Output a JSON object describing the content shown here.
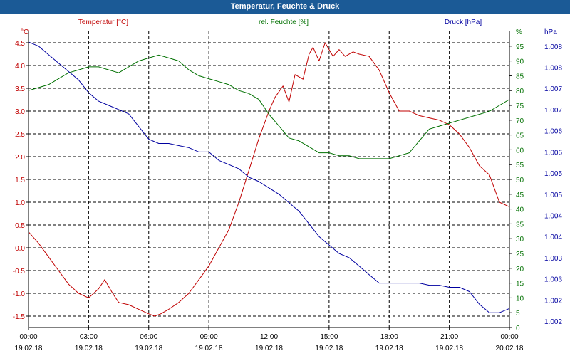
{
  "window": {
    "title": "Temperatur, Feuchte & Druck"
  },
  "chart_data": {
    "type": "line",
    "title": "Temperatur, Feuchte & Druck",
    "x_ticks": [
      {
        "time": "00:00",
        "date": "19.02.18"
      },
      {
        "time": "03:00",
        "date": "19.02.18"
      },
      {
        "time": "06:00",
        "date": "19.02.18"
      },
      {
        "time": "09:00",
        "date": "19.02.18"
      },
      {
        "time": "12:00",
        "date": "19.02.18"
      },
      {
        "time": "15:00",
        "date": "19.02.18"
      },
      {
        "time": "18:00",
        "date": "19.02.18"
      },
      {
        "time": "21:00",
        "date": "19.02.18"
      },
      {
        "time": "00:00",
        "date": "20.02.18"
      }
    ],
    "x_range_hours": [
      0,
      24
    ],
    "colors": {
      "temperature": "#c00000",
      "humidity": "#007000",
      "pressure": "#0000a0",
      "grid": "#000000",
      "axis_text": "#000000"
    },
    "axes": {
      "temperature": {
        "label": "Temperatur [°C]",
        "unit": "°C",
        "range": [
          -1.75,
          4.75
        ],
        "tick_labels": [
          "4.5",
          "4.0",
          "3.5",
          "3.0",
          "2.5",
          "2.0",
          "1.5",
          "1.0",
          "0.5",
          "0.0",
          "-0.5",
          "-1.0",
          "-1.5"
        ],
        "tick_values": [
          4.5,
          4.0,
          3.5,
          3.0,
          2.5,
          2.0,
          1.5,
          1.0,
          0.5,
          0.0,
          -0.5,
          -1.0,
          -1.5
        ]
      },
      "humidity": {
        "label": "rel. Feuchte [%]",
        "unit": "%",
        "range": [
          0,
          100
        ],
        "tick_labels": [
          "95",
          "90",
          "85",
          "80",
          "75",
          "70",
          "65",
          "60",
          "55",
          "50",
          "45",
          "40",
          "35",
          "30",
          "25",
          "20",
          "15",
          "10",
          "5",
          "0"
        ],
        "tick_values": [
          95,
          90,
          85,
          80,
          75,
          70,
          65,
          60,
          55,
          50,
          45,
          40,
          35,
          30,
          25,
          20,
          15,
          10,
          5,
          0
        ]
      },
      "pressure": {
        "label": "Druck [hPa]",
        "unit": "hPa",
        "range": [
          1001.85,
          1008.85
        ],
        "tick_labels": [
          "1.008",
          "1.008",
          "1.007",
          "1.007",
          "1.006",
          "1.006",
          "1.005",
          "1.005",
          "1.004",
          "1.004",
          "1.003",
          "1.003",
          "1.002",
          "1.002"
        ],
        "tick_values": [
          1008.5,
          1008.0,
          1007.5,
          1007.0,
          1006.5,
          1006.0,
          1005.5,
          1005.0,
          1004.5,
          1004.0,
          1003.5,
          1003.0,
          1002.5,
          1002.0
        ]
      }
    },
    "series": [
      {
        "name": "Temperatur [°C]",
        "axis": "temperature",
        "color": "#c00000",
        "x": [
          0,
          0.5,
          1,
          1.5,
          2,
          2.5,
          3,
          3.5,
          3.8,
          4.2,
          4.5,
          5,
          5.5,
          6,
          6.3,
          6.6,
          7,
          7.5,
          8,
          8.5,
          9,
          9.5,
          10,
          10.5,
          11,
          11.5,
          12,
          12.3,
          12.7,
          13,
          13.3,
          13.7,
          14,
          14.2,
          14.5,
          14.8,
          15.2,
          15.5,
          15.8,
          16.2,
          16.5,
          17,
          17.5,
          18,
          18.5,
          19,
          19.5,
          20,
          20.5,
          21,
          21.5,
          22,
          22.5,
          23,
          23.5,
          24
        ],
        "values": [
          0.35,
          0.1,
          -0.2,
          -0.5,
          -0.8,
          -1.0,
          -1.1,
          -0.9,
          -0.7,
          -1.0,
          -1.2,
          -1.25,
          -1.35,
          -1.45,
          -1.5,
          -1.45,
          -1.35,
          -1.2,
          -1.0,
          -0.7,
          -0.4,
          0.0,
          0.4,
          1.0,
          1.7,
          2.4,
          3.0,
          3.3,
          3.55,
          3.2,
          3.8,
          3.7,
          4.25,
          4.4,
          4.1,
          4.5,
          4.2,
          4.35,
          4.2,
          4.3,
          4.25,
          4.2,
          3.9,
          3.4,
          3.0,
          3.0,
          2.9,
          2.85,
          2.8,
          2.7,
          2.5,
          2.2,
          1.8,
          1.6,
          1.0,
          0.9
        ]
      },
      {
        "name": "rel. Feuchte [%]",
        "axis": "humidity",
        "color": "#007000",
        "x": [
          0,
          0.5,
          1,
          1.5,
          2,
          2.5,
          3,
          3.5,
          4,
          4.5,
          5,
          5.5,
          6,
          6.5,
          7,
          7.5,
          8,
          8.5,
          9,
          9.5,
          10,
          10.5,
          11,
          11.5,
          12,
          12.5,
          13,
          13.5,
          14,
          14.5,
          15,
          15.5,
          16,
          16.5,
          17,
          17.5,
          18,
          18.5,
          19,
          19.5,
          20,
          20.5,
          21,
          21.5,
          22,
          22.5,
          23,
          23.5,
          24
        ],
        "values": [
          80,
          81,
          82,
          84,
          86,
          87,
          88,
          88,
          87,
          86,
          88,
          90,
          91,
          92,
          91,
          90,
          87,
          85,
          84,
          83,
          82,
          80,
          79,
          77,
          72,
          68,
          64,
          63,
          61,
          59,
          59,
          58,
          58,
          57,
          57,
          57,
          57,
          58,
          59,
          63,
          67,
          68,
          69,
          70,
          71,
          72,
          73,
          75,
          77
        ]
      },
      {
        "name": "Druck [hPa]",
        "axis": "pressure",
        "color": "#0000a0",
        "x": [
          0,
          0.5,
          1,
          1.5,
          2,
          2.5,
          3,
          3.5,
          4,
          4.5,
          5,
          5.5,
          6,
          6.5,
          7,
          7.5,
          8,
          8.5,
          9,
          9.5,
          10,
          10.5,
          11,
          11.5,
          12,
          12.5,
          13,
          13.5,
          14,
          14.5,
          15,
          15.5,
          16,
          16.5,
          17,
          17.5,
          18,
          18.5,
          19,
          19.5,
          20,
          20.5,
          21,
          21.5,
          22,
          22.5,
          23,
          23.5,
          24
        ],
        "values": [
          1008.6,
          1008.5,
          1008.3,
          1008.1,
          1007.9,
          1007.7,
          1007.4,
          1007.2,
          1007.1,
          1007.0,
          1006.9,
          1006.6,
          1006.3,
          1006.2,
          1006.2,
          1006.15,
          1006.1,
          1006.0,
          1006.0,
          1005.8,
          1005.7,
          1005.6,
          1005.4,
          1005.3,
          1005.15,
          1005.0,
          1004.8,
          1004.6,
          1004.3,
          1004.0,
          1003.8,
          1003.6,
          1003.5,
          1003.3,
          1003.1,
          1002.9,
          1002.9,
          1002.9,
          1002.9,
          1002.9,
          1002.85,
          1002.85,
          1002.8,
          1002.8,
          1002.7,
          1002.4,
          1002.2,
          1002.2,
          1002.3
        ]
      }
    ]
  }
}
